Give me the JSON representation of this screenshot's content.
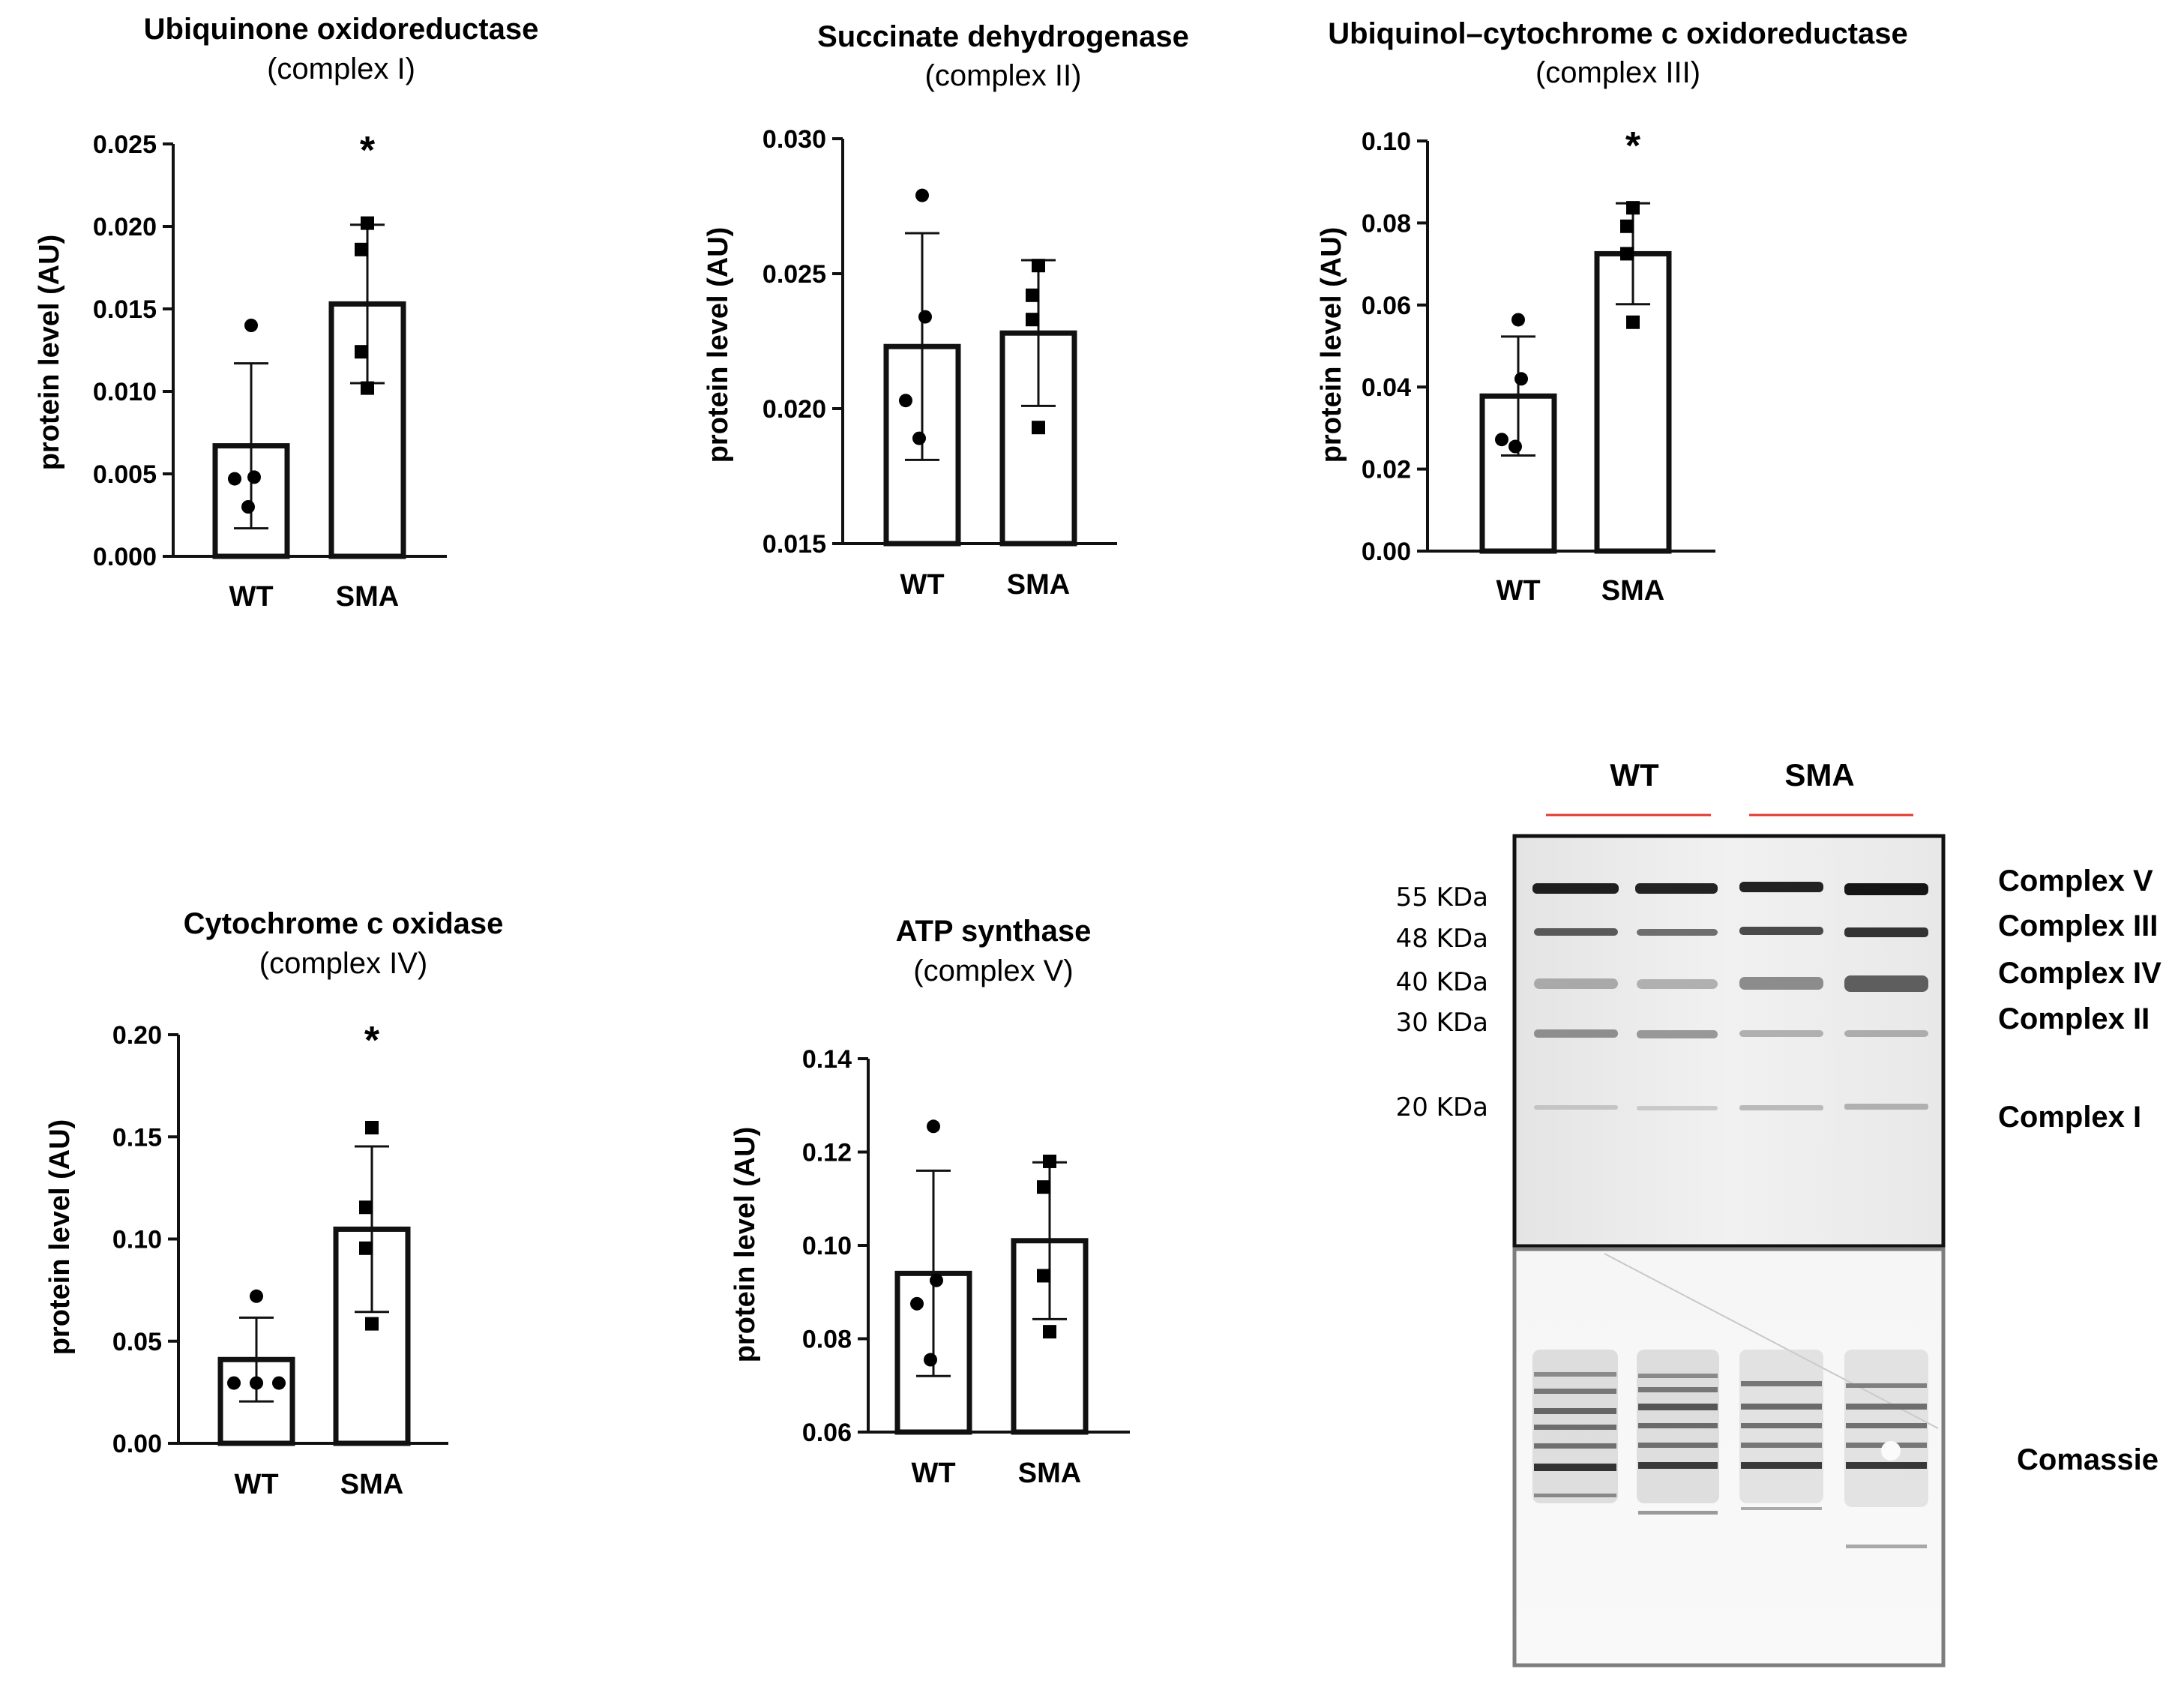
{
  "chart_data": [
    {
      "type": "bar",
      "title": "Ubiquinone oxidoreductase",
      "subtitle": "(complex I)",
      "ylabel": "protein level (AU)",
      "categories": [
        "WT",
        "SMA"
      ],
      "values": [
        0.0067,
        0.0153
      ],
      "sd": [
        0.005,
        0.0048
      ],
      "points": [
        [
          0.014,
          0.0048,
          0.0047,
          0.003
        ],
        [
          0.0202,
          0.0186,
          0.0124,
          0.0102
        ]
      ],
      "ylim": [
        0,
        0.025
      ],
      "yticks": [
        "0.000",
        "0.005",
        "0.010",
        "0.015",
        "0.020",
        "0.025"
      ],
      "significance": [
        "",
        "*"
      ]
    },
    {
      "type": "bar",
      "title": "Succinate dehydrogenase",
      "subtitle": "(complex II)",
      "ylabel": "protein level (AU)",
      "categories": [
        "WT",
        "SMA"
      ],
      "values": [
        0.0223,
        0.0228
      ],
      "sd": [
        0.0042,
        0.0027
      ],
      "points": [
        [
          0.0279,
          0.0234,
          0.0203,
          0.0189
        ],
        [
          0.0253,
          0.0242,
          0.0233,
          0.0193
        ]
      ],
      "ylim": [
        0.015,
        0.03
      ],
      "yticks": [
        "0.015",
        "0.020",
        "0.025",
        "0.030"
      ],
      "significance": [
        "",
        ""
      ]
    },
    {
      "type": "bar",
      "title": "Ubiquinol–cytochrome c oxidoreductase",
      "subtitle": "(complex III)",
      "ylabel": "protein level (AU)",
      "categories": [
        "WT",
        "SMA"
      ],
      "values": [
        0.0378,
        0.0725
      ],
      "sd": [
        0.0145,
        0.0123
      ],
      "points": [
        [
          0.0564,
          0.042,
          0.0272,
          0.0255
        ],
        [
          0.0837,
          0.0792,
          0.0725,
          0.0558
        ]
      ],
      "ylim": [
        0,
        0.1
      ],
      "yticks": [
        "0.00",
        "0.02",
        "0.04",
        "0.06",
        "0.08",
        "0.10"
      ],
      "significance": [
        "",
        "*"
      ]
    },
    {
      "type": "bar",
      "title": "Cytochrome c oxidase",
      "subtitle": "(complex IV)",
      "ylabel": "protein level (AU)",
      "categories": [
        "WT",
        "SMA"
      ],
      "values": [
        0.041,
        0.1048
      ],
      "sd": [
        0.0205,
        0.0405
      ],
      "points": [
        [
          0.072,
          0.0295,
          0.0295,
          0.0295
        ],
        [
          0.1545,
          0.1155,
          0.0955,
          0.0585
        ]
      ],
      "ylim": [
        0,
        0.2
      ],
      "yticks": [
        "0.00",
        "0.05",
        "0.10",
        "0.15",
        "0.20"
      ],
      "significance": [
        "",
        "*"
      ]
    },
    {
      "type": "bar",
      "title": "ATP synthase",
      "subtitle": "(complex V)",
      "ylabel": "protein level (AU)",
      "categories": [
        "WT",
        "SMA"
      ],
      "values": [
        0.094,
        0.101
      ],
      "sd": [
        0.022,
        0.0168
      ],
      "points": [
        [
          0.1255,
          0.0925,
          0.0875,
          0.0755
        ],
        [
          0.118,
          0.1125,
          0.0935,
          0.0815
        ]
      ],
      "ylim": [
        0.06,
        0.14
      ],
      "yticks": [
        "0.06",
        "0.08",
        "0.10",
        "0.12",
        "0.14"
      ],
      "significance": [
        "",
        ""
      ]
    }
  ],
  "blot": {
    "groups": [
      "WT",
      "SMA"
    ],
    "group_line_color": "#e03a2f",
    "markers": [
      "55 KDa",
      "48 KDa",
      "40 KDa",
      "30 KDa",
      "20 KDa"
    ],
    "complexes": [
      "Complex V",
      "Complex III",
      "Complex IV",
      "Complex II",
      "Complex I"
    ],
    "loading_label": "Comassie"
  }
}
